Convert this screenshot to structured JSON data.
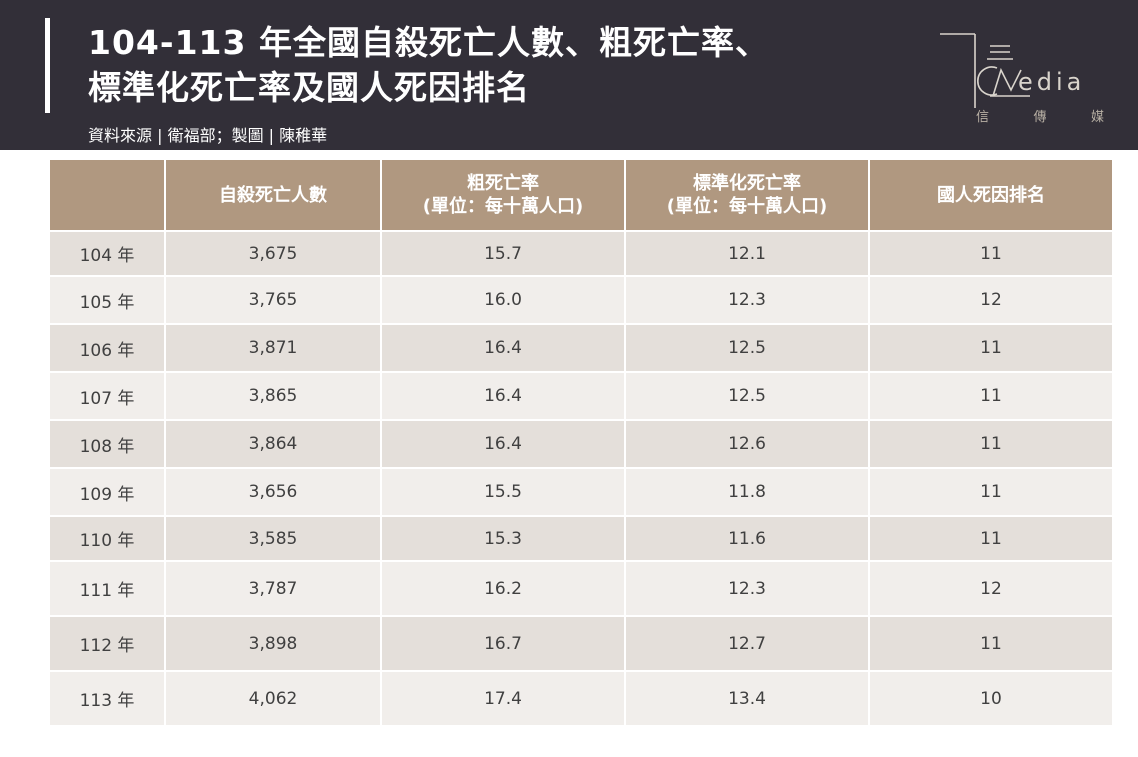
{
  "title": {
    "line1": "104-113 年全國自殺死亡人數、粗死亡率、",
    "line2": "標準化死亡率及國人死因排名"
  },
  "source": "資料來源 | 衛福部；製圖 | 陳稚華",
  "logo": {
    "brand": "edia",
    "sub": [
      "信",
      "傳",
      "媒"
    ]
  },
  "colors": {
    "header_bg": "#322f38",
    "table_header": "#b09880",
    "row_dark": "#e4dfda",
    "row_light": "#f1eeeb"
  },
  "chart_data": {
    "type": "table",
    "columns": [
      {
        "line1": "",
        "line2": ""
      },
      {
        "line1": "自殺死亡人數",
        "line2": ""
      },
      {
        "line1": "粗死亡率",
        "line2": "(單位：每十萬人口)"
      },
      {
        "line1": "標準化死亡率",
        "line2": "(單位：每十萬人口)"
      },
      {
        "line1": "國人死因排名",
        "line2": ""
      }
    ],
    "rows": [
      [
        "104 年",
        "3,675",
        "15.7",
        "12.1",
        "11"
      ],
      [
        "105 年",
        "3,765",
        "16.0",
        "12.3",
        "12"
      ],
      [
        "106 年",
        "3,871",
        "16.4",
        "12.5",
        "11"
      ],
      [
        "107 年",
        "3,865",
        "16.4",
        "12.5",
        "11"
      ],
      [
        "108 年",
        "3,864",
        "16.4",
        "12.6",
        "11"
      ],
      [
        "109 年",
        "3,656",
        "15.5",
        "11.8",
        "11"
      ],
      [
        "110 年",
        "3,585",
        "15.3",
        "11.6",
        "11"
      ],
      [
        "111 年",
        "3,787",
        "16.2",
        "12.3",
        "12"
      ],
      [
        "112 年",
        "3,898",
        "16.7",
        "12.7",
        "11"
      ],
      [
        "113 年",
        "4,062",
        "17.4",
        "13.4",
        "10"
      ]
    ]
  }
}
